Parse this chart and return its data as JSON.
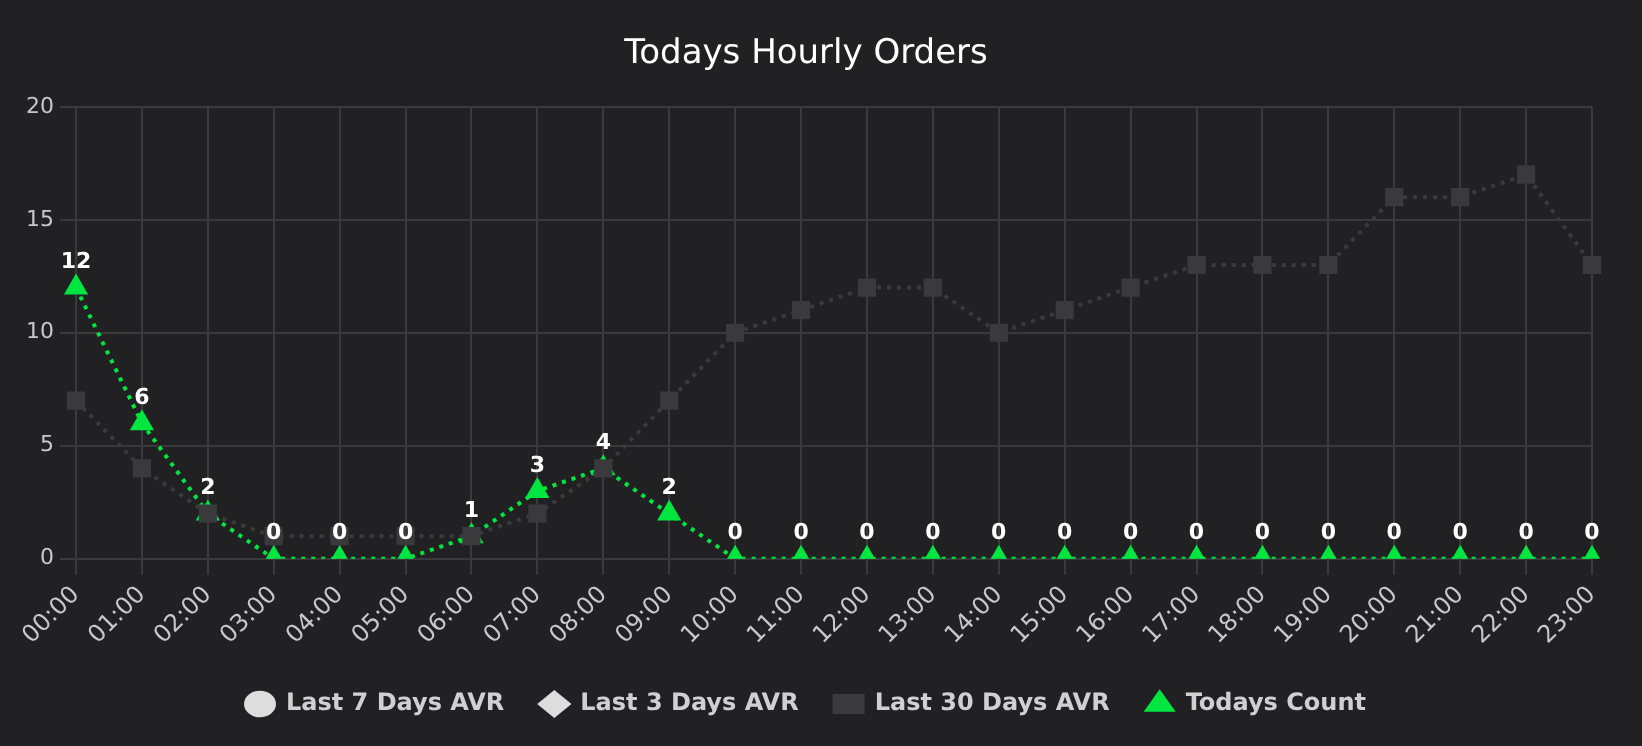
{
  "chart_data": {
    "type": "line",
    "title": "Todays Hourly Orders",
    "categories": [
      "00:00",
      "01:00",
      "02:00",
      "03:00",
      "04:00",
      "05:00",
      "06:00",
      "07:00",
      "08:00",
      "09:00",
      "10:00",
      "11:00",
      "12:00",
      "13:00",
      "14:00",
      "15:00",
      "16:00",
      "17:00",
      "18:00",
      "19:00",
      "20:00",
      "21:00",
      "22:00",
      "23:00"
    ],
    "series": [
      {
        "name": "Last 7 Days AVR",
        "color": "#dddddd",
        "marker": "circle",
        "values": [
          null,
          null,
          null,
          null,
          null,
          null,
          null,
          null,
          null,
          null,
          null,
          null,
          null,
          null,
          null,
          null,
          null,
          null,
          null,
          null,
          null,
          null,
          null,
          null
        ]
      },
      {
        "name": "Last 3 Days AVR",
        "color": "#dddddd",
        "marker": "diamond",
        "values": [
          null,
          null,
          null,
          null,
          null,
          null,
          null,
          null,
          null,
          null,
          null,
          null,
          null,
          null,
          null,
          null,
          null,
          null,
          null,
          null,
          null,
          null,
          null,
          null
        ]
      },
      {
        "name": "Last 30 Days AVR",
        "color": "#3a3a3c",
        "marker": "square",
        "values": [
          7,
          4,
          2,
          1,
          1,
          1,
          1,
          2,
          4,
          7,
          10,
          11,
          12,
          12,
          10,
          11,
          12,
          13,
          13,
          13,
          16,
          16,
          17,
          13
        ]
      },
      {
        "name": "Todays Count",
        "color": "#00e640",
        "marker": "triangle",
        "values": [
          12,
          6,
          2,
          0,
          0,
          0,
          1,
          3,
          4,
          2,
          0,
          0,
          0,
          0,
          0,
          0,
          0,
          0,
          0,
          0,
          0,
          0,
          0,
          0
        ],
        "value_labels": [
          "12",
          "6",
          "2",
          "0",
          "0",
          "0",
          "1",
          "3",
          "4",
          "2",
          "0",
          "0",
          "0",
          "0",
          "0",
          "0",
          "0",
          "0",
          "0",
          "0",
          "0",
          "0",
          "0",
          "0"
        ]
      }
    ],
    "ylim": [
      0,
      20
    ],
    "yticks": [
      0,
      5,
      10,
      15,
      20
    ],
    "grid": true,
    "legend": "bottom",
    "line_style": "dotted"
  }
}
